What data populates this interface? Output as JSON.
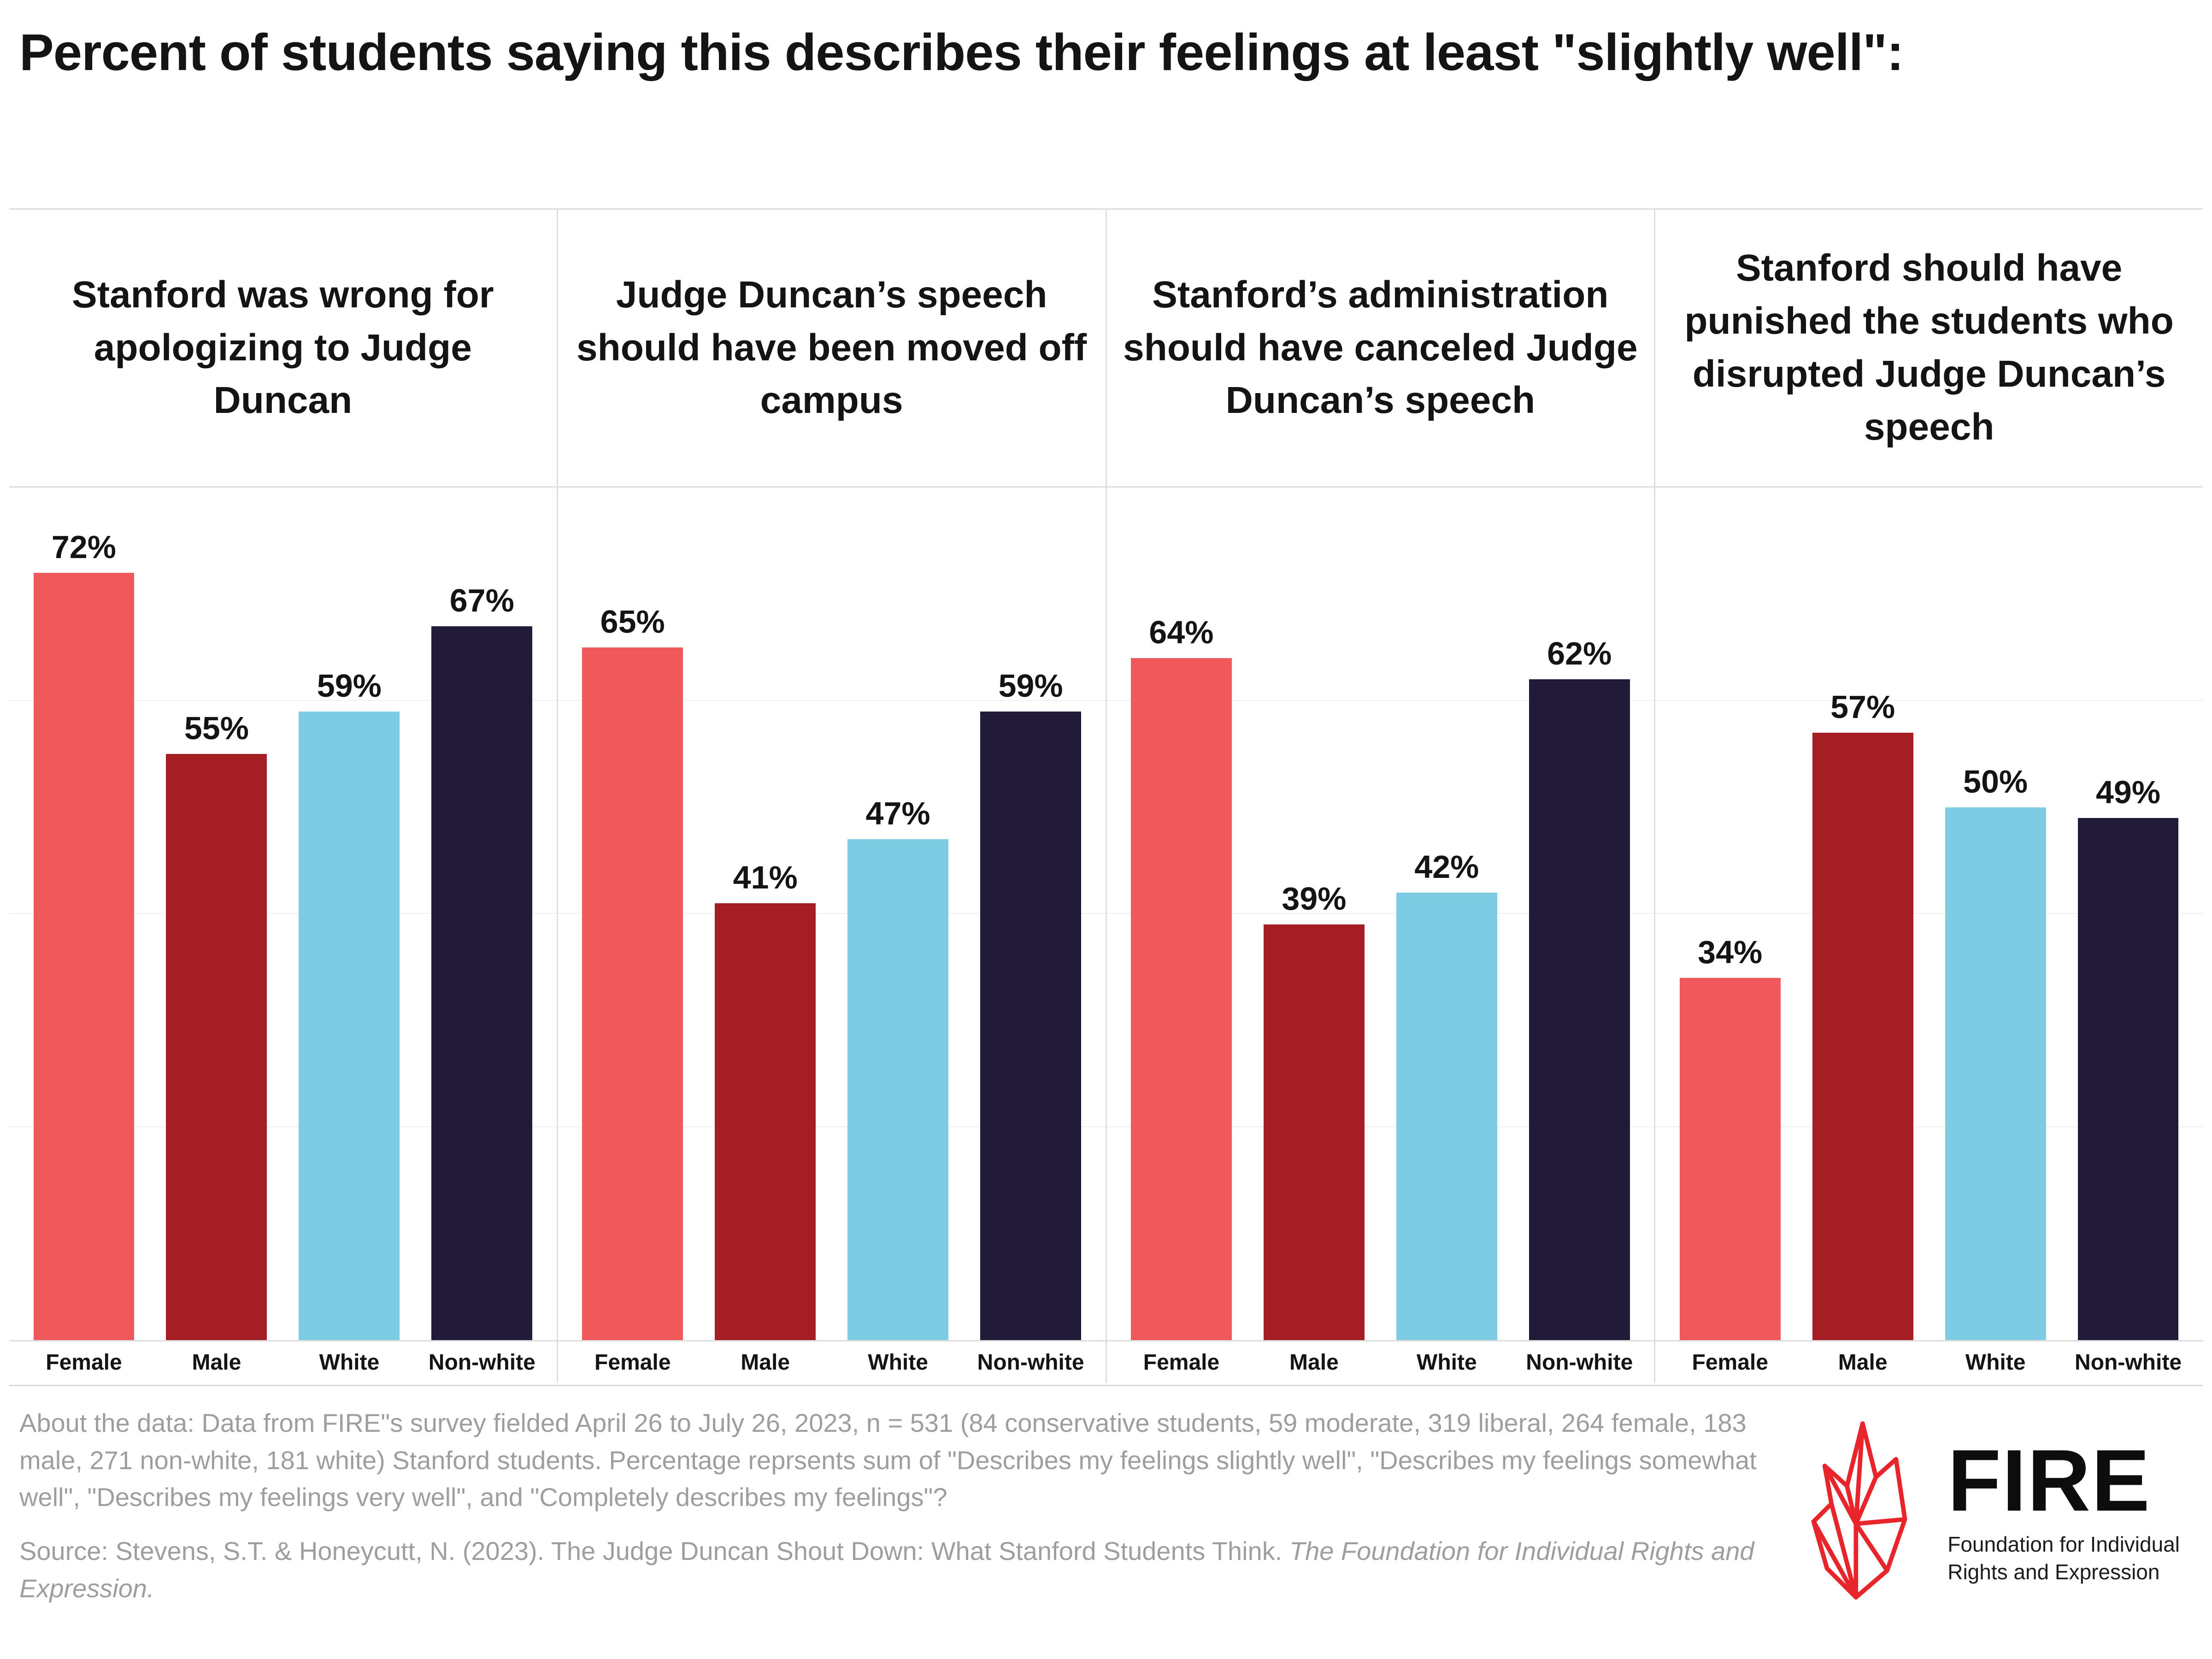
{
  "chart_data": {
    "type": "bar",
    "title": "Percent of students saying this describes their feelings at least \"slightly well\":",
    "categories": [
      "Female",
      "Male",
      "White",
      "Non-white"
    ],
    "ylim": [
      0,
      80
    ],
    "gridlines": [
      20,
      40,
      60
    ],
    "grid": true,
    "legend_position": "none",
    "colors": {
      "Female": "#F0595C",
      "Male": "#A51E24",
      "White": "#7ECCE4",
      "Non-white": "#211A38"
    },
    "panels": [
      {
        "title": "Stanford was wrong for apologizing to Judge Duncan",
        "values": [
          72,
          55,
          59,
          67
        ]
      },
      {
        "title": "Judge Duncan’s speech should have been moved off campus",
        "values": [
          65,
          41,
          47,
          59
        ]
      },
      {
        "title": "Stanford’s administration should have canceled Judge Duncan’s speech",
        "values": [
          64,
          39,
          42,
          62
        ]
      },
      {
        "title": "Stanford should have punished the students who disrupted Judge Duncan’s speech",
        "values": [
          34,
          57,
          50,
          49
        ]
      }
    ],
    "value_suffix": "%"
  },
  "footer": {
    "about": "About the data: Data from FIRE\"s survey fielded April 26 to July 26, 2023, n = 531 (84 conservative students, 59 moderate, 319 liberal, 264 female, 183 male, 271 non-white, 181 white) Stanford students. Percentage reprsents sum of \"Describes my feelings slightly well\", \"Describes my feelings somewhat well\", \"Describes my feelings very well\", and \"Completely describes my feelings\"?",
    "source_regular": "Source: Stevens, S.T. & Honeycutt, N. (2023). The Judge Duncan Shout Down: What Stanford Students Think. ",
    "source_italic": "The Foundation for Individual Rights and Expression."
  },
  "logo": {
    "brand": "FIRE",
    "tagline_line1": "Foundation for Individual",
    "tagline_line2": "Rights and Expression",
    "flame_color": "#E8252B"
  }
}
